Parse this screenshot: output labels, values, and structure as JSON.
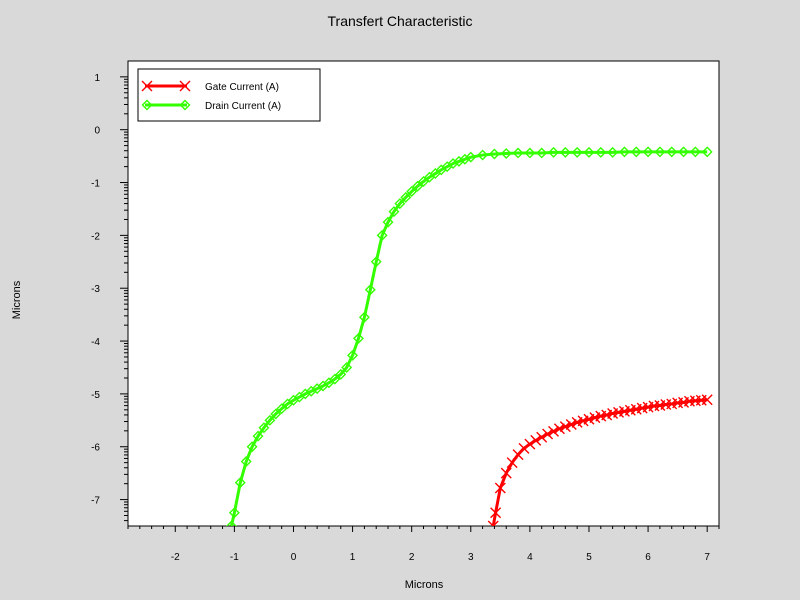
{
  "chart_data": {
    "type": "line",
    "title": "Transfert Characteristic",
    "xlabel": "Microns",
    "ylabel": "Microns",
    "xlim": [
      -2.8,
      7.2
    ],
    "ylim": [
      -7.5,
      1.3
    ],
    "x_ticks": [
      -2,
      -1,
      0,
      1,
      2,
      3,
      4,
      5,
      6,
      7
    ],
    "y_ticks": [
      1,
      0,
      -1,
      -2,
      -3,
      -4,
      -5,
      -6,
      -7
    ],
    "grid": false,
    "legend_position": "top-left",
    "series": [
      {
        "name": "Gate Current (A)",
        "color": "#ff0000",
        "marker": "x",
        "x": [
          3.38,
          3.42,
          3.5,
          3.6,
          3.7,
          3.8,
          3.9,
          4.0,
          4.1,
          4.2,
          4.3,
          4.4,
          4.5,
          4.6,
          4.7,
          4.8,
          4.9,
          5.0,
          5.1,
          5.2,
          5.3,
          5.4,
          5.5,
          5.6,
          5.7,
          5.8,
          5.9,
          6.0,
          6.1,
          6.2,
          6.3,
          6.4,
          6.5,
          6.6,
          6.7,
          6.8,
          6.9,
          7.0
        ],
        "y": [
          -7.5,
          -7.25,
          -6.78,
          -6.5,
          -6.3,
          -6.15,
          -6.03,
          -5.95,
          -5.88,
          -5.82,
          -5.76,
          -5.71,
          -5.66,
          -5.62,
          -5.58,
          -5.54,
          -5.51,
          -5.48,
          -5.45,
          -5.42,
          -5.4,
          -5.37,
          -5.35,
          -5.33,
          -5.31,
          -5.29,
          -5.27,
          -5.25,
          -5.23,
          -5.22,
          -5.2,
          -5.19,
          -5.17,
          -5.16,
          -5.14,
          -5.13,
          -5.12,
          -5.11
        ]
      },
      {
        "name": "Drain Current (A)",
        "color": "#33ff00",
        "marker": "diamond",
        "x": [
          -1.05,
          -1.0,
          -0.9,
          -0.8,
          -0.7,
          -0.6,
          -0.5,
          -0.4,
          -0.3,
          -0.2,
          -0.1,
          0.0,
          0.1,
          0.2,
          0.3,
          0.4,
          0.5,
          0.6,
          0.7,
          0.8,
          0.9,
          1.0,
          1.1,
          1.2,
          1.3,
          1.4,
          1.5,
          1.6,
          1.7,
          1.8,
          1.9,
          2.0,
          2.1,
          2.2,
          2.3,
          2.4,
          2.5,
          2.6,
          2.7,
          2.8,
          2.9,
          3.0,
          3.2,
          3.4,
          3.6,
          3.8,
          4.0,
          4.2,
          4.4,
          4.6,
          4.8,
          5.0,
          5.2,
          5.4,
          5.6,
          5.8,
          6.0,
          6.2,
          6.4,
          6.6,
          6.8,
          7.0
        ],
        "y": [
          -7.5,
          -7.25,
          -6.68,
          -6.28,
          -6.0,
          -5.8,
          -5.64,
          -5.5,
          -5.38,
          -5.28,
          -5.19,
          -5.12,
          -5.06,
          -5.0,
          -4.95,
          -4.9,
          -4.85,
          -4.79,
          -4.72,
          -4.63,
          -4.5,
          -4.27,
          -3.95,
          -3.55,
          -3.03,
          -2.5,
          -2.0,
          -1.75,
          -1.55,
          -1.4,
          -1.28,
          -1.17,
          -1.07,
          -0.98,
          -0.9,
          -0.83,
          -0.76,
          -0.7,
          -0.64,
          -0.6,
          -0.56,
          -0.52,
          -0.48,
          -0.46,
          -0.45,
          -0.44,
          -0.44,
          -0.44,
          -0.43,
          -0.43,
          -0.43,
          -0.43,
          -0.43,
          -0.43,
          -0.42,
          -0.42,
          -0.42,
          -0.42,
          -0.42,
          -0.42,
          -0.42,
          -0.42
        ]
      }
    ]
  }
}
